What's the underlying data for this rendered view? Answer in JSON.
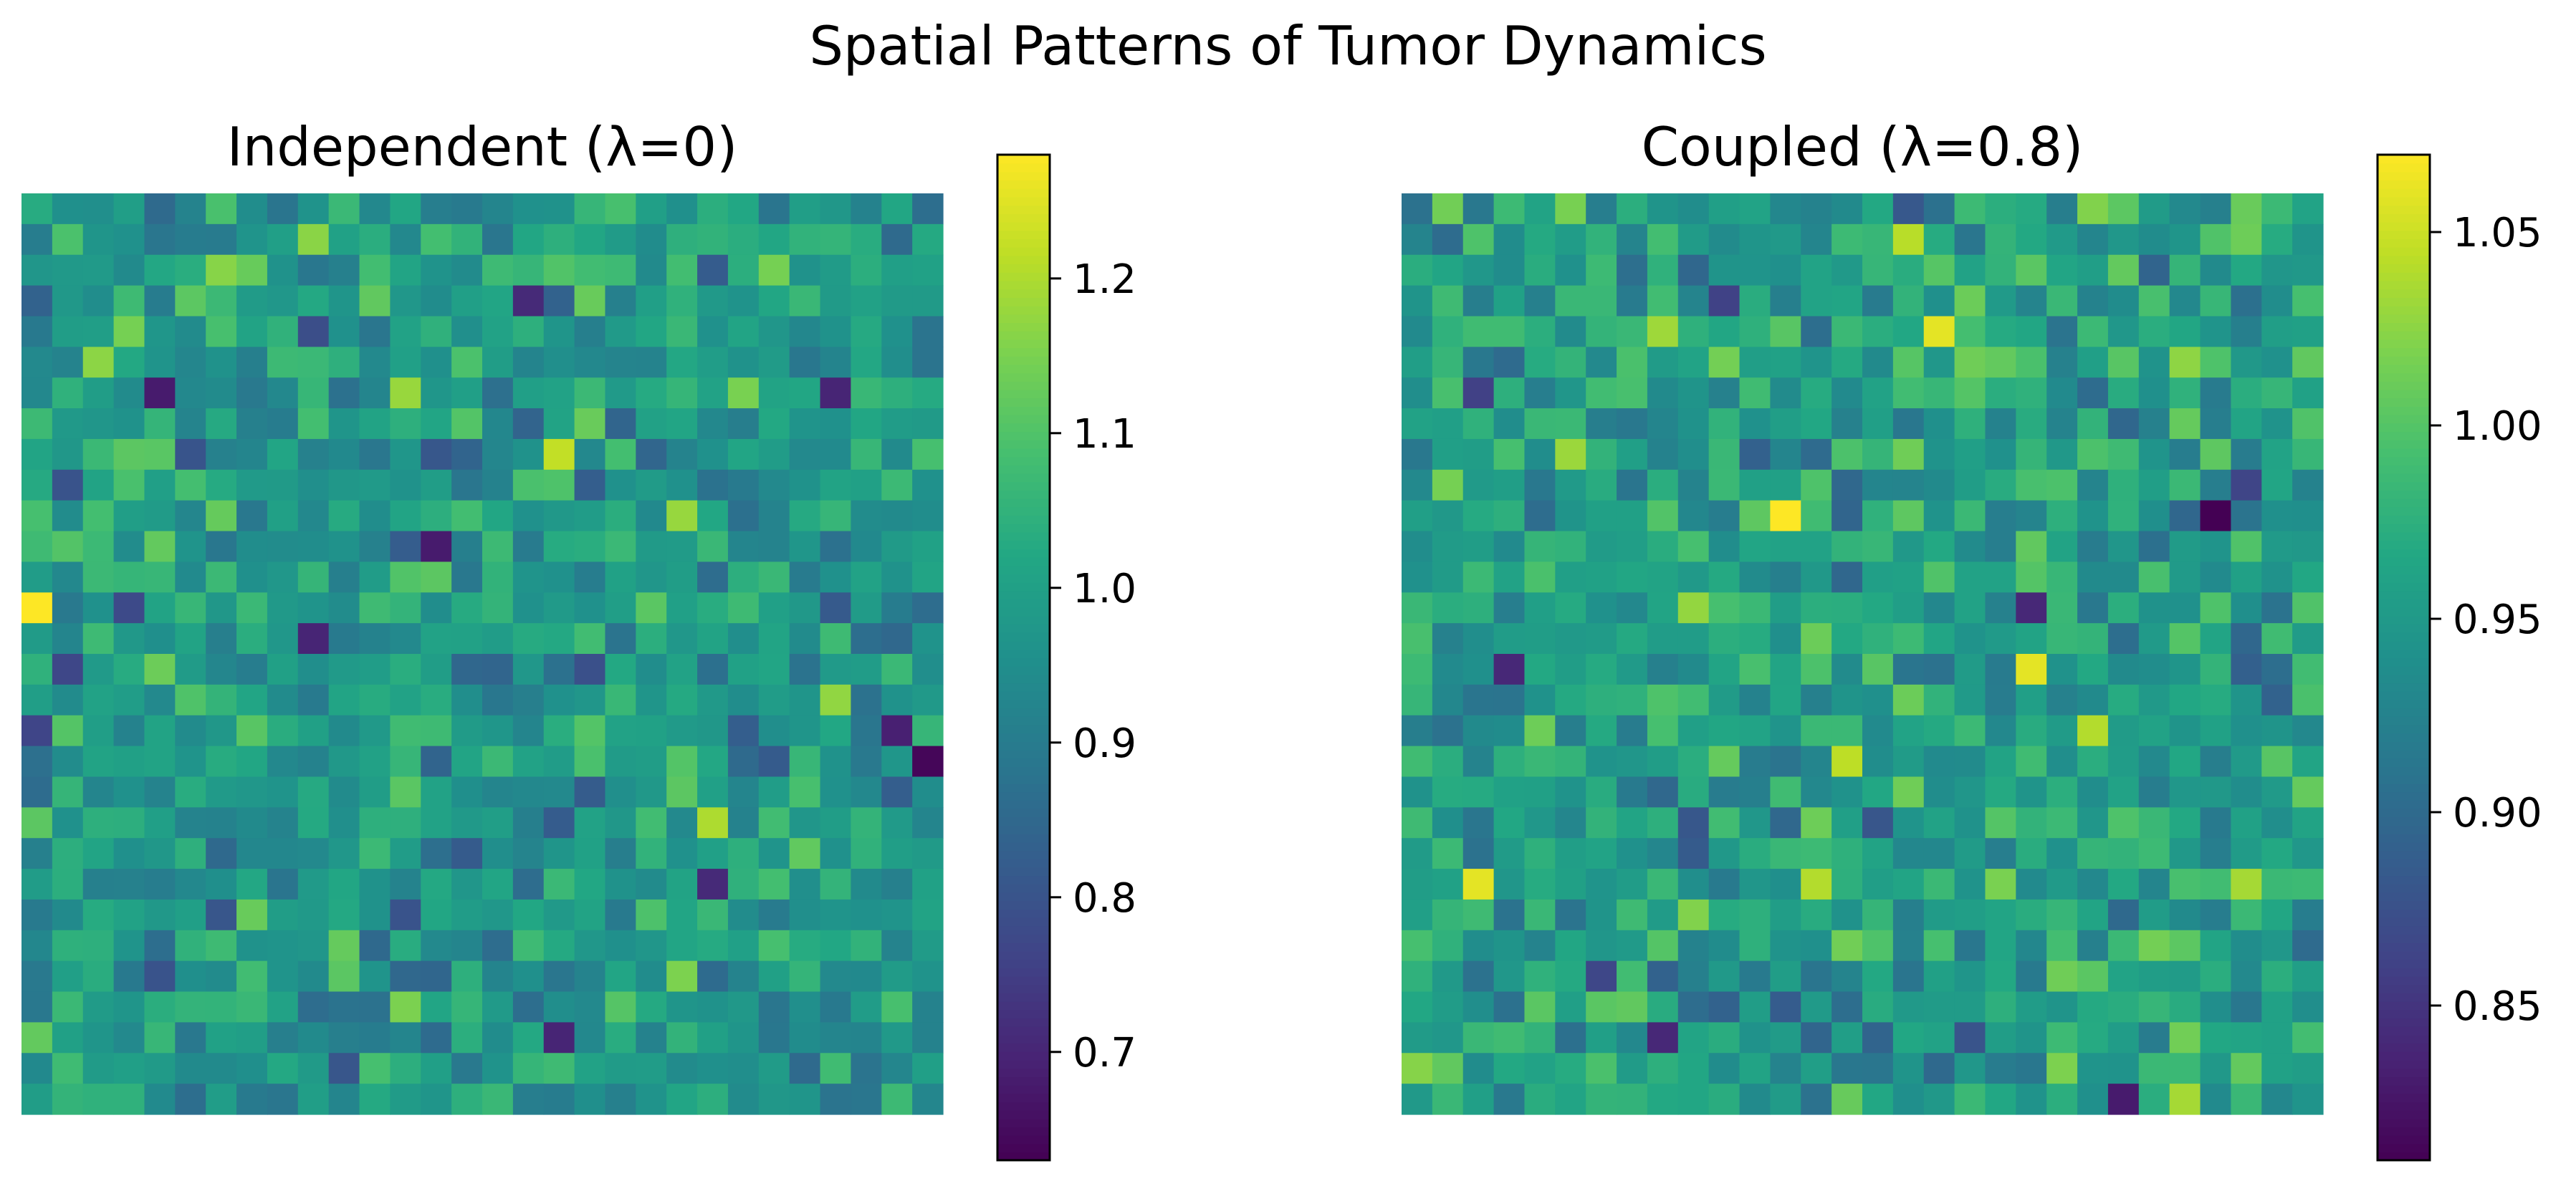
{
  "figure": {
    "title": "Spatial Patterns of Tumor Dynamics"
  },
  "chart_data": [
    {
      "type": "heatmap",
      "title": "Independent (λ=0)",
      "rows": 30,
      "cols": 30,
      "colormap": "viridis",
      "axes_visible": false,
      "values_note": "cell values estimated; field visually approximated",
      "colorbar": {
        "range": [
          0.63,
          1.28
        ],
        "ticks": [
          0.7,
          0.8,
          0.9,
          1.0,
          1.1,
          1.2
        ],
        "tick_labels": [
          "0.7",
          "0.8",
          "0.9",
          "1.0",
          "1.1",
          "1.2"
        ]
      },
      "values": [],
      "highlights": [
        {
          "row": 13,
          "col": 0,
          "value": 1.28
        },
        {
          "row": 8,
          "col": 17,
          "value": 1.22
        },
        {
          "row": 6,
          "col": 12,
          "value": 1.18
        },
        {
          "row": 20,
          "col": 22,
          "value": 1.2
        },
        {
          "row": 17,
          "col": 28,
          "value": 0.69
        },
        {
          "row": 18,
          "col": 29,
          "value": 0.64
        },
        {
          "row": 11,
          "col": 13,
          "value": 0.68
        },
        {
          "row": 6,
          "col": 4,
          "value": 0.68
        },
        {
          "row": 14,
          "col": 9,
          "value": 0.7
        },
        {
          "row": 3,
          "col": 16,
          "value": 0.71
        },
        {
          "row": 27,
          "col": 17,
          "value": 0.7
        },
        {
          "row": 22,
          "col": 22,
          "value": 0.71
        },
        {
          "row": 6,
          "col": 26,
          "value": 0.7
        }
      ],
      "seed": 17,
      "mean": 0.98,
      "spread": 0.07
    },
    {
      "type": "heatmap",
      "title": "Coupled (λ=0.8)",
      "rows": 30,
      "cols": 30,
      "colormap": "viridis",
      "axes_visible": false,
      "values_note": "cell values estimated; field visually approximated",
      "colorbar": {
        "range": [
          0.81,
          1.07
        ],
        "ticks": [
          0.85,
          0.9,
          0.95,
          1.0,
          1.05
        ],
        "tick_labels": [
          "0.85",
          "0.90",
          "0.95",
          "1.00",
          "1.05"
        ]
      },
      "values": [],
      "highlights": [
        {
          "row": 10,
          "col": 12,
          "value": 1.07
        },
        {
          "row": 4,
          "col": 17,
          "value": 1.06
        },
        {
          "row": 15,
          "col": 20,
          "value": 1.06
        },
        {
          "row": 22,
          "col": 2,
          "value": 1.06
        },
        {
          "row": 17,
          "col": 22,
          "value": 1.04
        },
        {
          "row": 22,
          "col": 13,
          "value": 1.04
        },
        {
          "row": 10,
          "col": 26,
          "value": 0.81
        },
        {
          "row": 13,
          "col": 20,
          "value": 0.84
        },
        {
          "row": 15,
          "col": 3,
          "value": 0.84
        },
        {
          "row": 29,
          "col": 23,
          "value": 0.83
        },
        {
          "row": 27,
          "col": 8,
          "value": 0.84
        },
        {
          "row": 6,
          "col": 2,
          "value": 0.86
        }
      ],
      "seed": 91,
      "mean": 0.955,
      "spread": 0.03
    }
  ]
}
